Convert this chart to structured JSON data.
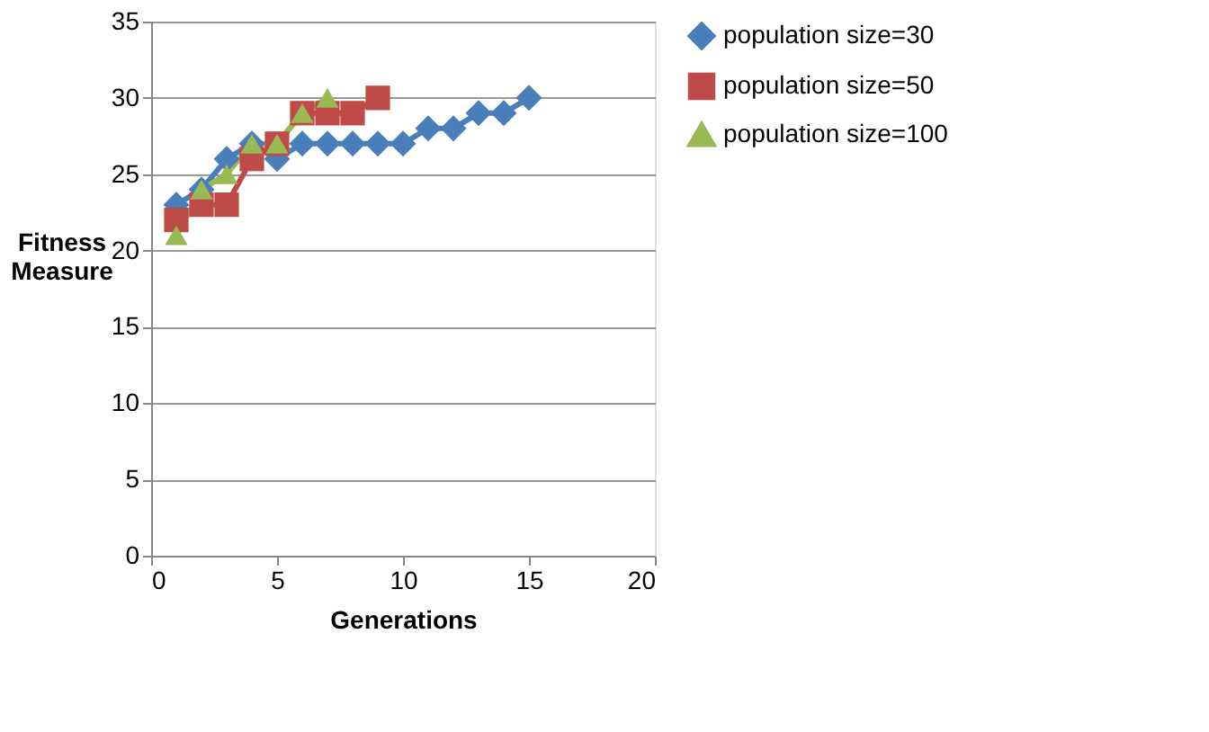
{
  "chart_data": {
    "type": "line",
    "xlabel": "Generations",
    "ylabel": "Fitness Measure",
    "xlim": [
      0,
      20
    ],
    "xticks": [
      0,
      5,
      10,
      15,
      20
    ],
    "ylim": [
      0,
      35
    ],
    "yticks": [
      0,
      5,
      10,
      15,
      20,
      25,
      30,
      35
    ],
    "grid": "y",
    "legend": "right",
    "series": [
      {
        "name": "population size=30",
        "color": "#4a7ebb",
        "marker": "diamond",
        "x": [
          1,
          2,
          3,
          4,
          5,
          6,
          7,
          8,
          9,
          10,
          11,
          12,
          13,
          14,
          15
        ],
        "values": [
          23,
          24,
          26,
          27,
          26,
          27,
          27,
          27,
          27,
          27,
          28,
          28,
          29,
          29,
          30
        ]
      },
      {
        "name": "population size=50",
        "color": "#be4b48",
        "marker": "square",
        "x": [
          1,
          2,
          3,
          4,
          5,
          6,
          7,
          8,
          9
        ],
        "values": [
          22,
          23,
          23,
          26,
          27,
          29,
          29,
          29,
          30
        ]
      },
      {
        "name": "population size=100",
        "color": "#98b954",
        "marker": "triangle",
        "x": [
          1,
          2,
          3,
          4,
          5,
          6,
          7
        ],
        "values": [
          21,
          24,
          25,
          27,
          27,
          29,
          30
        ]
      }
    ]
  }
}
